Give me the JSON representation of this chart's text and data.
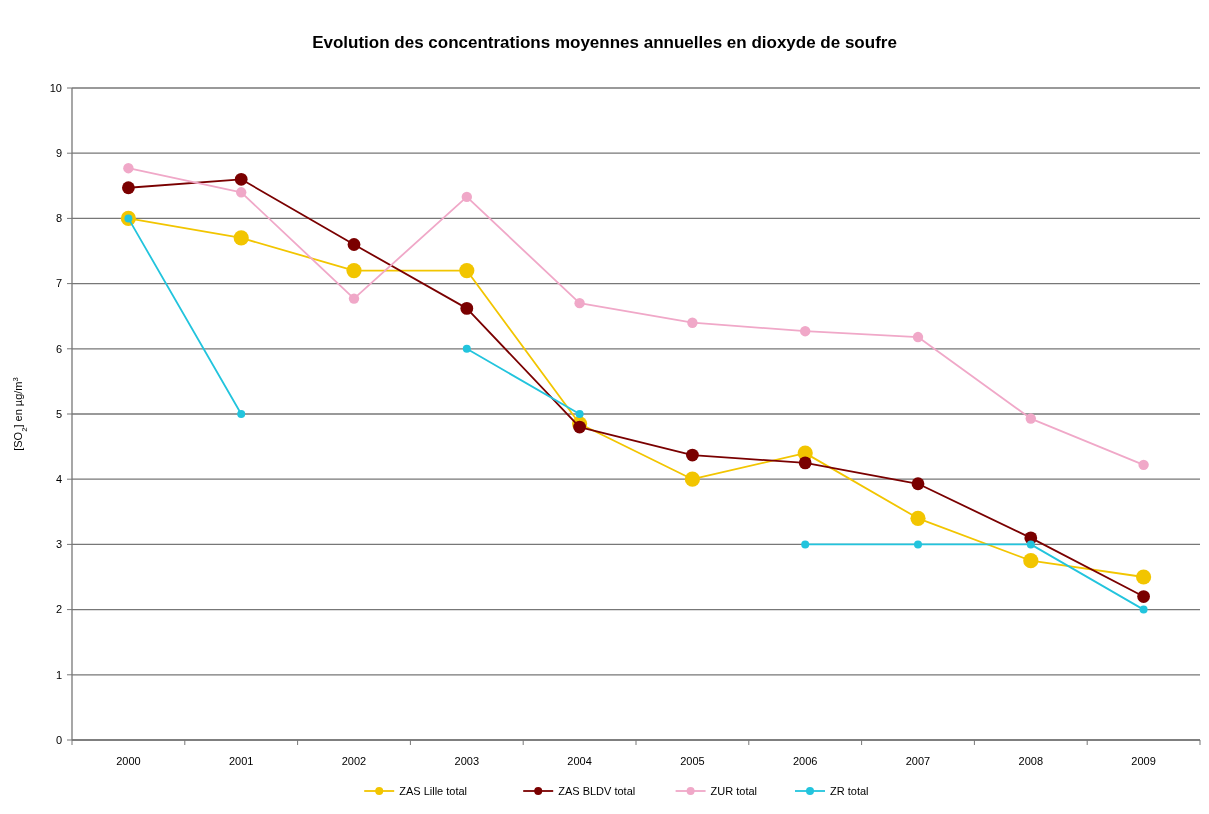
{
  "chart_data": {
    "type": "line",
    "title": "Evolution des concentrations moyennes annuelles en dioxyde de soufre",
    "ylabel": "[SO$_{2}$] en µg/m$^{3}$",
    "categories": [
      "2000",
      "2001",
      "2002",
      "2003",
      "2004",
      "2005",
      "2006",
      "2007",
      "2008",
      "2009"
    ],
    "ylim": [
      0,
      10
    ],
    "yticks": [
      0,
      1,
      2,
      3,
      4,
      5,
      6,
      7,
      8,
      9,
      10
    ],
    "grid": "y",
    "legend": "bottom",
    "marker": "circle",
    "line_style": "solid",
    "series": [
      {
        "name": "ZAS Lille total",
        "color": "#f2c500",
        "values": [
          8.0,
          7.7,
          7.2,
          7.2,
          4.85,
          4.0,
          4.4,
          3.4,
          2.75,
          2.5
        ]
      },
      {
        "name": "ZAS BLDV total",
        "color": "#7a0000",
        "values": [
          8.47,
          8.6,
          7.6,
          6.62,
          4.8,
          4.37,
          4.25,
          3.93,
          3.1,
          2.2
        ]
      },
      {
        "name": "ZUR total",
        "color": "#f0a8c8",
        "values": [
          8.77,
          8.4,
          6.77,
          8.33,
          6.7,
          6.4,
          6.27,
          6.18,
          4.93,
          4.22
        ]
      },
      {
        "name": "ZR total",
        "color": "#22c4dd",
        "values": [
          8,
          5,
          null,
          6,
          5,
          null,
          3,
          3,
          3,
          2
        ]
      }
    ]
  }
}
